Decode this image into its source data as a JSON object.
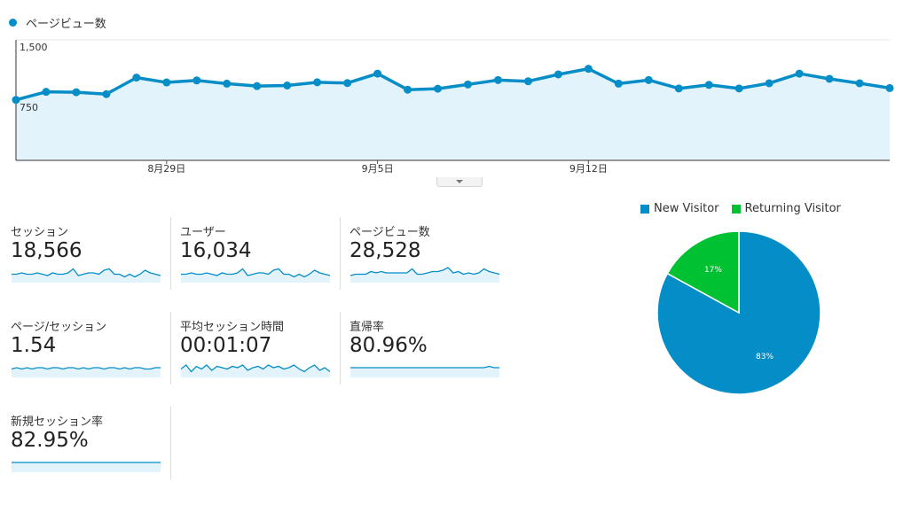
{
  "colors": {
    "primary": "#058dc7",
    "primary_fill": "#e3f3fb",
    "returning": "#00c131",
    "grid": "#e6e6e6"
  },
  "series_label": "ページビュー数",
  "chart_data": [
    {
      "type": "area",
      "series": [
        {
          "name": "ページビュー数",
          "values": [
            753,
            853,
            848,
            825,
            1030,
            970,
            995,
            955,
            925,
            932,
            972,
            963,
            1080,
            880,
            892,
            945,
            1000,
            985,
            1070,
            1140,
            955,
            1000,
            895,
            940,
            895,
            960,
            1080,
            1015,
            960,
            900
          ]
        }
      ],
      "ylim": [
        0,
        1500
      ],
      "yticks": [
        {
          "value": 1500,
          "label": "1,500"
        },
        {
          "value": 750,
          "label": "750"
        }
      ],
      "xticks": [
        {
          "index": 5,
          "label": "8月29日"
        },
        {
          "index": 12,
          "label": "9月5日"
        },
        {
          "index": 19,
          "label": "9月12日"
        }
      ],
      "grid": true
    },
    {
      "type": "pie",
      "legend_position": "top",
      "slices": [
        {
          "name": "New Visitor",
          "value": 83,
          "label": "83%",
          "color": "#058dc7"
        },
        {
          "name": "Returning Visitor",
          "value": 17,
          "label": "17%",
          "color": "#00c131"
        }
      ]
    }
  ],
  "metrics": [
    {
      "label": "セッション",
      "value": "18,566",
      "spark": [
        5,
        5,
        6,
        5,
        5,
        6,
        5,
        4,
        6,
        5,
        5,
        6,
        9,
        4,
        5,
        6,
        6,
        5,
        8,
        9,
        5,
        5,
        3,
        5,
        3,
        5,
        8,
        6,
        5,
        4
      ]
    },
    {
      "label": "ユーザー",
      "value": "16,034",
      "spark": [
        5,
        5,
        6,
        5,
        5,
        6,
        5,
        4,
        6,
        5,
        5,
        6,
        9,
        4,
        5,
        6,
        6,
        5,
        8,
        9,
        5,
        5,
        3,
        5,
        3,
        5,
        8,
        6,
        5,
        4
      ]
    },
    {
      "label": "ページビュー数",
      "value": "28,528",
      "spark": [
        4,
        5,
        5,
        5,
        7,
        6,
        7,
        6,
        6,
        6,
        6,
        6,
        9,
        5,
        5,
        6,
        7,
        7,
        8,
        10,
        6,
        7,
        5,
        6,
        5,
        6,
        9,
        7,
        6,
        5
      ]
    },
    {
      "label": "ページ/セッション",
      "value": "1.54",
      "spark": [
        5,
        6,
        5,
        6,
        5,
        6,
        6,
        5,
        6,
        6,
        5,
        6,
        6,
        5,
        6,
        5,
        6,
        6,
        5,
        6,
        6,
        5,
        6,
        5,
        6,
        6,
        5,
        5,
        6,
        6
      ]
    },
    {
      "label": "平均セッション時間",
      "value": "00:01:07",
      "spark": [
        5,
        8,
        3,
        7,
        5,
        8,
        4,
        7,
        6,
        5,
        7,
        6,
        8,
        4,
        6,
        7,
        5,
        8,
        6,
        7,
        5,
        6,
        8,
        5,
        3,
        6,
        8,
        4,
        6,
        3
      ]
    },
    {
      "label": "直帰率",
      "value": "80.96%",
      "spark": [
        6,
        6,
        6,
        6,
        6,
        6,
        6,
        6,
        6,
        6,
        6,
        6,
        6,
        6,
        6,
        6,
        6,
        6,
        6,
        6,
        6,
        6,
        6,
        6,
        6,
        6,
        6,
        7,
        6,
        6
      ]
    },
    {
      "label": "新規セッション率",
      "value": "82.95%",
      "spark": [
        6,
        6,
        6,
        6,
        6,
        6,
        6,
        6,
        6,
        6,
        6,
        6,
        6,
        6,
        6,
        6,
        6,
        6,
        6,
        6,
        6,
        6,
        6,
        6,
        6,
        6,
        6,
        6,
        6,
        6
      ]
    }
  ]
}
